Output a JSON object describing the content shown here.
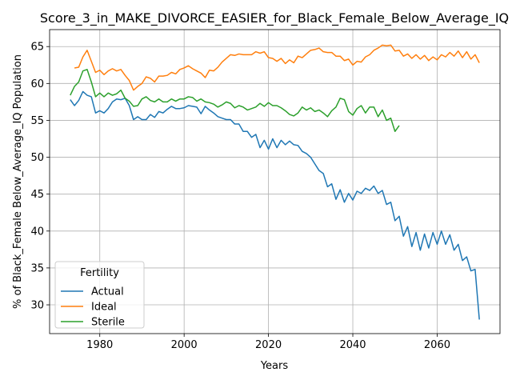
{
  "chart_data": {
    "type": "line",
    "title": "Score_3_in_MAKE_DIVORCE_EASIER_for_Black_Female_Below_Average_IQ",
    "xlabel": "Years",
    "ylabel": "% of Black_Female Below_Average_IQ Population",
    "xlim": [
      1968.1,
      2074.9
    ],
    "ylim": [
      26.1,
      67.3
    ],
    "xticks": [
      1980,
      2000,
      2020,
      2040,
      2060
    ],
    "yticks": [
      30,
      35,
      40,
      45,
      50,
      55,
      60,
      65
    ],
    "grid": true,
    "legend": {
      "title": "Fertility",
      "position": "lower-left"
    },
    "series": [
      {
        "name": "Actual",
        "color": "#1f77b4",
        "x": [
          1973,
          1974,
          1975,
          1976,
          1977,
          1978,
          1979,
          1980,
          1981,
          1982,
          1983,
          1984,
          1985,
          1986,
          1987,
          1988,
          1989,
          1990,
          1991,
          1992,
          1993,
          1994,
          1995,
          1996,
          1997,
          1998,
          1999,
          2000,
          2001,
          2002,
          2003,
          2004,
          2005,
          2006,
          2007,
          2008,
          2009,
          2010,
          2011,
          2012,
          2013,
          2014,
          2015,
          2016,
          2017,
          2018,
          2019,
          2020,
          2021,
          2022,
          2023,
          2024,
          2025,
          2026,
          2027,
          2028,
          2029,
          2030,
          2031,
          2032,
          2033,
          2034,
          2035,
          2036,
          2037,
          2038,
          2039,
          2040,
          2041,
          2042,
          2043,
          2044,
          2045,
          2046,
          2047,
          2048,
          2049,
          2050,
          2051,
          2052,
          2053,
          2054,
          2055,
          2056,
          2057,
          2058,
          2059,
          2060,
          2061,
          2062,
          2063,
          2064,
          2065,
          2066,
          2067,
          2068,
          2069,
          2070
        ],
        "y": [
          57.8,
          57.0,
          57.7,
          58.9,
          58.4,
          58.2,
          56.0,
          56.3,
          56.0,
          56.6,
          57.5,
          57.9,
          57.8,
          58.0,
          57.0,
          55.1,
          55.5,
          55.1,
          55.1,
          55.8,
          55.4,
          56.2,
          56.0,
          56.5,
          56.9,
          56.6,
          56.6,
          56.7,
          57.0,
          56.9,
          56.8,
          55.9,
          56.9,
          56.4,
          56.0,
          55.5,
          55.3,
          55.1,
          55.1,
          54.5,
          54.5,
          53.5,
          53.5,
          52.7,
          53.1,
          51.3,
          52.3,
          51.1,
          52.5,
          51.3,
          52.3,
          51.7,
          52.2,
          51.7,
          51.6,
          50.8,
          50.5,
          50.0,
          49.1,
          48.2,
          47.8,
          46.0,
          46.4,
          44.3,
          45.6,
          43.9,
          45.1,
          44.2,
          45.4,
          45.1,
          45.8,
          45.5,
          46.1,
          45.1,
          45.5,
          43.6,
          43.9,
          41.4,
          42.0,
          39.3,
          40.6,
          37.9,
          39.8,
          37.4,
          39.6,
          37.7,
          39.8,
          38.2,
          40.0,
          38.2,
          39.5,
          37.4,
          38.2,
          36.0,
          36.5,
          34.6,
          34.8,
          28.0
        ]
      },
      {
        "name": "Ideal",
        "color": "#ff7f0e",
        "x": [
          1974,
          1975,
          1976,
          1977,
          1978,
          1979,
          1980,
          1981,
          1982,
          1983,
          1984,
          1985,
          1986,
          1987,
          1988,
          1989,
          1990,
          1991,
          1992,
          1993,
          1994,
          1995,
          1996,
          1997,
          1998,
          1999,
          2000,
          2001,
          2002,
          2003,
          2004,
          2005,
          2006,
          2007,
          2008,
          2009,
          2010,
          2011,
          2012,
          2013,
          2014,
          2015,
          2016,
          2017,
          2018,
          2019,
          2020,
          2021,
          2022,
          2023,
          2024,
          2025,
          2026,
          2027,
          2028,
          2029,
          2030,
          2031,
          2032,
          2033,
          2034,
          2035,
          2036,
          2037,
          2038,
          2039,
          2040,
          2041,
          2042,
          2043,
          2044,
          2045,
          2046,
          2047,
          2048,
          2049,
          2050,
          2051,
          2052,
          2053,
          2054,
          2055,
          2056,
          2057,
          2058,
          2059,
          2060,
          2061,
          2062,
          2063,
          2064,
          2065,
          2066,
          2067,
          2068,
          2069,
          2070
        ],
        "y": [
          62.1,
          62.2,
          63.6,
          64.5,
          63.0,
          61.5,
          61.8,
          61.2,
          61.7,
          62.0,
          61.7,
          61.9,
          61.1,
          60.4,
          59.1,
          59.6,
          60.0,
          60.9,
          60.7,
          60.2,
          61.0,
          61.0,
          61.1,
          61.5,
          61.3,
          61.9,
          62.1,
          62.4,
          62.0,
          61.7,
          61.4,
          60.8,
          61.8,
          61.7,
          62.2,
          62.9,
          63.4,
          63.9,
          63.8,
          64.0,
          63.9,
          63.9,
          63.9,
          64.3,
          64.1,
          64.3,
          63.5,
          63.4,
          63.0,
          63.4,
          62.7,
          63.2,
          62.8,
          63.7,
          63.5,
          64.0,
          64.5,
          64.6,
          64.8,
          64.3,
          64.2,
          64.2,
          63.7,
          63.7,
          63.1,
          63.3,
          62.5,
          63.0,
          62.9,
          63.6,
          63.9,
          64.5,
          64.8,
          65.2,
          65.1,
          65.2,
          64.4,
          64.5,
          63.7,
          64.0,
          63.4,
          63.9,
          63.3,
          63.8,
          63.1,
          63.6,
          63.2,
          63.9,
          63.6,
          64.2,
          63.7,
          64.4,
          63.5,
          64.3,
          63.3,
          63.9,
          62.8
        ]
      },
      {
        "name": "Sterile",
        "color": "#2ca02c",
        "x": [
          1973,
          1974,
          1975,
          1976,
          1977,
          1978,
          1979,
          1980,
          1981,
          1982,
          1983,
          1984,
          1985,
          1986,
          1987,
          1988,
          1989,
          1990,
          1991,
          1992,
          1993,
          1994,
          1995,
          1996,
          1997,
          1998,
          1999,
          2000,
          2001,
          2002,
          2003,
          2004,
          2005,
          2006,
          2007,
          2008,
          2009,
          2010,
          2011,
          2012,
          2013,
          2014,
          2015,
          2016,
          2017,
          2018,
          2019,
          2020,
          2021,
          2022,
          2023,
          2024,
          2025,
          2026,
          2027,
          2028,
          2029,
          2030,
          2031,
          2032,
          2033,
          2034,
          2035,
          2036,
          2037,
          2038,
          2039,
          2040,
          2041,
          2042,
          2043,
          2044,
          2045,
          2046,
          2047,
          2048,
          2049,
          2050,
          2051
        ],
        "y": [
          58.4,
          59.6,
          60.2,
          61.7,
          61.9,
          60.2,
          58.2,
          58.7,
          58.2,
          58.7,
          58.4,
          58.6,
          59.1,
          58.0,
          57.6,
          56.9,
          57.0,
          57.9,
          58.2,
          57.7,
          57.5,
          57.9,
          57.5,
          57.5,
          57.9,
          57.6,
          57.9,
          57.9,
          58.2,
          58.1,
          57.6,
          57.9,
          57.5,
          57.4,
          57.2,
          56.8,
          57.1,
          57.5,
          57.3,
          56.7,
          57.0,
          56.8,
          56.4,
          56.6,
          56.8,
          57.3,
          56.9,
          57.4,
          57.0,
          57.0,
          56.7,
          56.3,
          55.8,
          55.6,
          56.0,
          56.8,
          56.4,
          56.7,
          56.2,
          56.4,
          56.0,
          55.5,
          56.3,
          56.8,
          58.0,
          57.8,
          56.2,
          55.7,
          56.6,
          57.0,
          56.0,
          56.8,
          56.8,
          55.5,
          56.4,
          55.0,
          55.3,
          53.5,
          54.3
        ]
      }
    ]
  }
}
